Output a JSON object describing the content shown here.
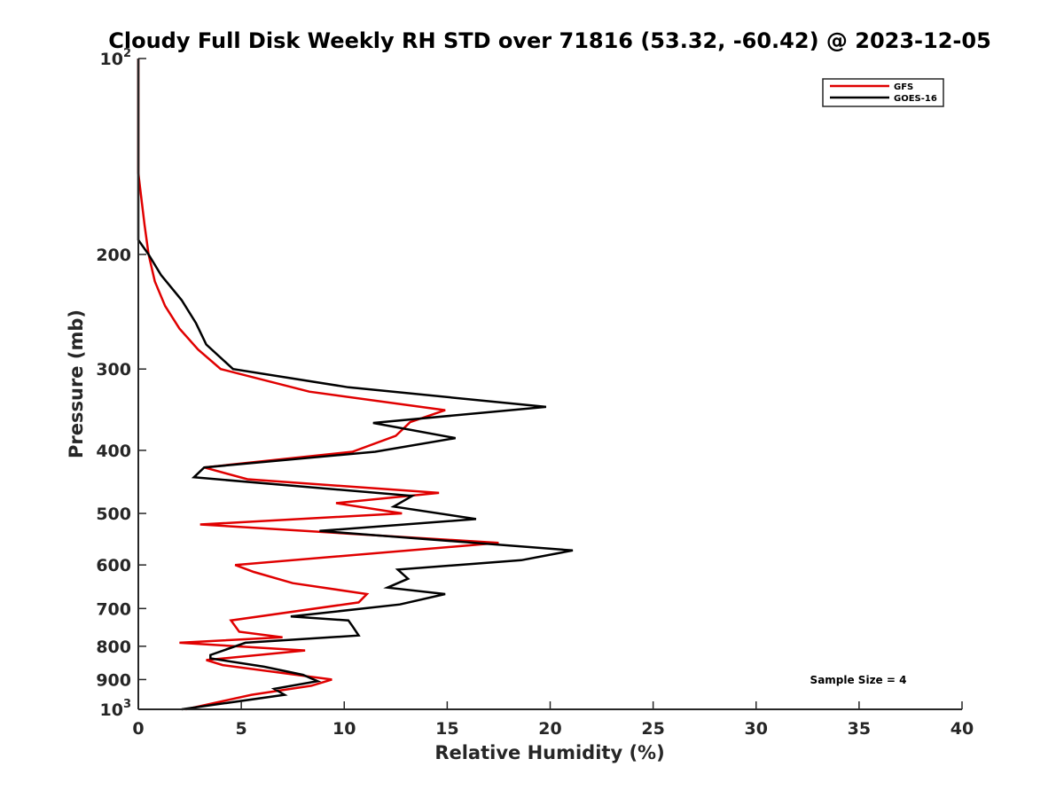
{
  "chart_data": {
    "type": "line",
    "title": "Cloudy Full Disk Weekly RH STD over 71816 (53.32, -60.42) @ 2023-12-05",
    "xlabel": "Relative Humidity (%)",
    "ylabel": "Pressure (mb)",
    "xlim": [
      0,
      40
    ],
    "ylim": [
      100,
      1000
    ],
    "y_scale": "log",
    "y_reversed": true,
    "grid": false,
    "legend_position": "top-right",
    "x_ticks": [
      "0",
      "5",
      "10",
      "15",
      "20",
      "25",
      "30",
      "35",
      "40"
    ],
    "y_ticks": [
      {
        "value": 100,
        "base": "10",
        "exp": "2"
      },
      {
        "value": 200,
        "label": "200"
      },
      {
        "value": 300,
        "label": "300"
      },
      {
        "value": 400,
        "label": "400"
      },
      {
        "value": 500,
        "label": "500"
      },
      {
        "value": 600,
        "label": "600"
      },
      {
        "value": 700,
        "label": "700"
      },
      {
        "value": 800,
        "label": "800"
      },
      {
        "value": 900,
        "label": "900"
      },
      {
        "value": 1000,
        "base": "10",
        "exp": "3"
      }
    ],
    "annotation": "Sample Size = 4",
    "series": [
      {
        "name": "GFS",
        "color": "#e00000",
        "points": [
          [
            0,
            100
          ],
          [
            0,
            150
          ],
          [
            0.3,
            180
          ],
          [
            0.5,
            200
          ],
          [
            0.8,
            220
          ],
          [
            1.3,
            240
          ],
          [
            2.0,
            260
          ],
          [
            2.9,
            280
          ],
          [
            4.0,
            300
          ],
          [
            8.3,
            325
          ],
          [
            14.9,
            347
          ],
          [
            13.2,
            362
          ],
          [
            12.5,
            380
          ],
          [
            10.4,
            402
          ],
          [
            3.2,
            425
          ],
          [
            5.3,
            443
          ],
          [
            14.6,
            465
          ],
          [
            9.6,
            482
          ],
          [
            12.8,
            500
          ],
          [
            3.0,
            520
          ],
          [
            17.5,
            555
          ],
          [
            4.7,
            600
          ],
          [
            5.6,
            615
          ],
          [
            7.5,
            640
          ],
          [
            11.1,
            665
          ],
          [
            10.7,
            685
          ],
          [
            4.5,
            730
          ],
          [
            4.9,
            760
          ],
          [
            7.0,
            775
          ],
          [
            2.0,
            790
          ],
          [
            8.1,
            812
          ],
          [
            3.3,
            840
          ],
          [
            4.1,
            855
          ],
          [
            9.4,
            900
          ],
          [
            8.4,
            920
          ],
          [
            5.5,
            950
          ],
          [
            2.3,
            1000
          ]
        ]
      },
      {
        "name": "GOES-16",
        "color": "#000000",
        "points": [
          [
            0,
            100
          ],
          [
            0,
            160
          ],
          [
            0,
            190
          ],
          [
            0.5,
            200
          ],
          [
            1.1,
            215
          ],
          [
            2.1,
            235
          ],
          [
            2.8,
            255
          ],
          [
            3.3,
            275
          ],
          [
            4.6,
            300
          ],
          [
            10.2,
            320
          ],
          [
            19.8,
            343
          ],
          [
            11.4,
            363
          ],
          [
            15.4,
            383
          ],
          [
            11.5,
            402
          ],
          [
            3.2,
            425
          ],
          [
            2.7,
            440
          ],
          [
            13.3,
            470
          ],
          [
            12.4,
            488
          ],
          [
            16.4,
            510
          ],
          [
            8.8,
            532
          ],
          [
            13.1,
            545
          ],
          [
            21.1,
            570
          ],
          [
            18.6,
            590
          ],
          [
            12.6,
            610
          ],
          [
            13.1,
            630
          ],
          [
            12.1,
            650
          ],
          [
            14.9,
            665
          ],
          [
            12.7,
            690
          ],
          [
            7.4,
            720
          ],
          [
            10.2,
            730
          ],
          [
            10.4,
            745
          ],
          [
            10.7,
            770
          ],
          [
            5.2,
            790
          ],
          [
            3.5,
            825
          ],
          [
            3.5,
            835
          ],
          [
            6.1,
            860
          ],
          [
            8.0,
            885
          ],
          [
            8.7,
            905
          ],
          [
            6.6,
            930
          ],
          [
            7.1,
            950
          ],
          [
            2.1,
            1000
          ]
        ]
      }
    ]
  }
}
